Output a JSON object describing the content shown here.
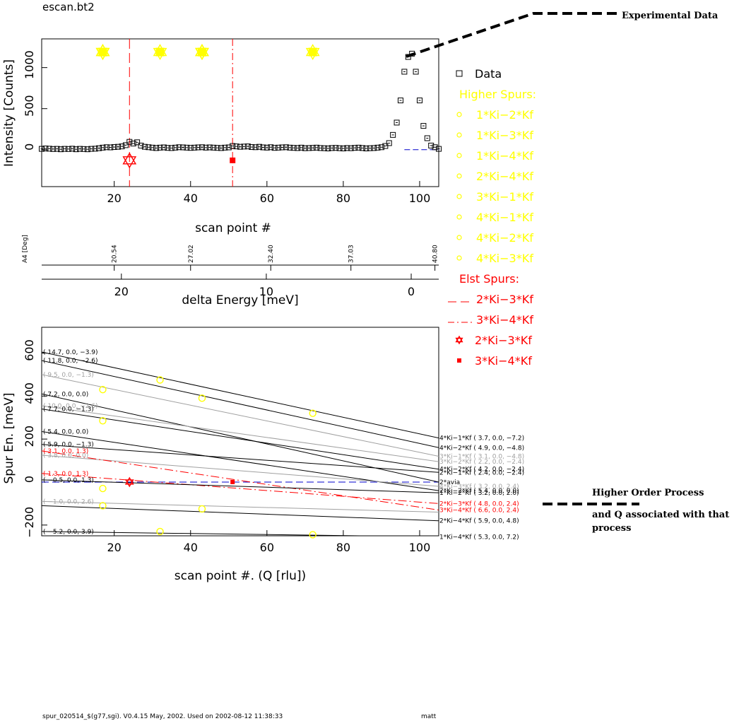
{
  "file_title": "escan.bt2",
  "footer": {
    "version_text": "spur_020514_$(g77,sgi). V0.4.15 May, 2002. Used on 2002-08-12  11:38:33",
    "user": "matt"
  },
  "annotations": {
    "experimental": "Experimental Data",
    "higher_order_line1": "Higher Order Process",
    "higher_order_line2": "and Q associated with that",
    "higher_order_line3": "process"
  },
  "colors": {
    "data": "#000000",
    "higher_spurs": "#ffff00",
    "elst_spurs": "#ff0000",
    "baseline": "#0000cc",
    "grey_line": "#a0a0a0"
  },
  "legend": {
    "data_label": "Data",
    "higher_header": "Higher Spurs:",
    "higher_items": [
      "1*Ki−2*Kf",
      "1*Ki−3*Kf",
      "1*Ki−4*Kf",
      "2*Ki−4*Kf",
      "3*Ki−1*Kf",
      "4*Ki−1*Kf",
      "4*Ki−2*Kf",
      "4*Ki−3*Kf"
    ],
    "elst_header": "Elst Spurs:",
    "elst_line_items": [
      "2*Ki−3*Kf",
      "3*Ki−4*Kf"
    ],
    "elst_point_items": [
      "2*Ki−3*Kf",
      "3*Ki−4*Kf"
    ]
  },
  "chart_data": [
    {
      "type": "scatter",
      "xlabel": "scan point #",
      "ylabel": "Intensity [Counts]",
      "xlim": [
        1,
        105
      ],
      "ylim": [
        -450,
        1350
      ],
      "xticks": [
        20,
        40,
        60,
        80,
        100
      ],
      "yticks": [
        0,
        500,
        1000
      ],
      "grid": false,
      "data": {
        "x": [
          1,
          2,
          3,
          4,
          5,
          6,
          7,
          8,
          9,
          10,
          11,
          12,
          13,
          14,
          15,
          16,
          17,
          18,
          19,
          20,
          21,
          22,
          23,
          24,
          25,
          26,
          27,
          28,
          29,
          30,
          31,
          32,
          33,
          34,
          35,
          36,
          37,
          38,
          39,
          40,
          41,
          42,
          43,
          44,
          45,
          46,
          47,
          48,
          49,
          50,
          51,
          52,
          53,
          54,
          55,
          56,
          57,
          58,
          59,
          60,
          61,
          62,
          63,
          64,
          65,
          66,
          67,
          68,
          69,
          70,
          71,
          72,
          73,
          74,
          75,
          76,
          77,
          78,
          79,
          80,
          81,
          82,
          83,
          84,
          85,
          86,
          87,
          88,
          89,
          90,
          91,
          92,
          93,
          94,
          95,
          96,
          97,
          98,
          99,
          100,
          101,
          102,
          103,
          104,
          105
        ],
        "y": [
          10,
          15,
          12,
          8,
          10,
          5,
          10,
          8,
          12,
          5,
          10,
          8,
          5,
          10,
          12,
          18,
          25,
          30,
          28,
          32,
          35,
          40,
          55,
          95,
          75,
          90,
          50,
          35,
          30,
          25,
          20,
          25,
          28,
          22,
          20,
          25,
          30,
          28,
          25,
          22,
          25,
          28,
          30,
          25,
          28,
          25,
          22,
          20,
          25,
          28,
          45,
          40,
          35,
          38,
          40,
          32,
          30,
          35,
          28,
          25,
          30,
          22,
          25,
          28,
          30,
          25,
          22,
          20,
          25,
          18,
          20,
          22,
          25,
          20,
          18,
          15,
          20,
          22,
          18,
          15,
          20,
          18,
          22,
          25,
          20,
          15,
          18,
          20,
          25,
          30,
          45,
          80,
          180,
          330,
          600,
          950,
          1130,
          1170,
          950,
          600,
          290,
          140,
          50,
          30,
          10
        ]
      },
      "higher_points": [
        {
          "series": "1*Ki−2*Kf",
          "x": 17,
          "y": 1190
        },
        {
          "series": "1*Ki−3*Kf",
          "x": 43,
          "y": 1190
        },
        {
          "series": "1*Ki−4*Kf",
          "x": 32,
          "y": 1190
        },
        {
          "series": "1*Ki−4*Kf",
          "x": 72,
          "y": 1190
        },
        {
          "series": "2*Ki−4*Kf",
          "x": 17,
          "y": 1190
        },
        {
          "series": "3*Ki−1*Kf",
          "x": 17,
          "y": 1190
        },
        {
          "series": "4*Ki−1*Kf",
          "x": 43,
          "y": 1190
        },
        {
          "series": "4*Ki−2*Kf",
          "x": 43,
          "y": 1190
        }
      ],
      "elst_points": [
        {
          "series": "2*Ki−3*Kf",
          "x": 24,
          "y": -130
        },
        {
          "series": "3*Ki−4*Kf",
          "x": 51,
          "y": -130
        }
      ],
      "elst_vlines": [
        {
          "series": "2*Ki−3*Kf",
          "x": 24,
          "style": "dash"
        },
        {
          "series": "3*Ki−4*Kf",
          "x": 51,
          "style": "dashdot"
        }
      ],
      "baseline": {
        "x0": 96,
        "x1": 105,
        "y": 0
      }
    },
    {
      "type": "axis",
      "xlabel": "delta Energy [meV]",
      "xlim": [
        25.5,
        -1.9
      ],
      "xticks": [
        20,
        10,
        0
      ],
      "top_label": "A4 [Deg]",
      "top_ticks": [
        {
          "scan_point": 20,
          "label": "20.54"
        },
        {
          "scan_point": 40,
          "label": "27.02"
        },
        {
          "scan_point": 61,
          "label": "32.40"
        },
        {
          "scan_point": 82,
          "label": "37.03"
        },
        {
          "scan_point": 104,
          "label": "40.80"
        }
      ]
    },
    {
      "type": "line",
      "xlabel": "scan point #. (Q [rlu])",
      "ylabel": "Spur En. [meV]",
      "xlim": [
        1,
        105
      ],
      "ylim": [
        -250,
        720
      ],
      "xticks": [
        20,
        40,
        60,
        80,
        100
      ],
      "yticks": [
        -200,
        0,
        200,
        400,
        600
      ],
      "grid": false,
      "lines": [
        {
          "color": "black",
          "y0": 605,
          "y1": 205,
          "left": "( 14.7,  0.0, −3.9)",
          "right": "4*Ki−1*Kf  (  3.7,  0.0, −7.2)"
        },
        {
          "color": "black",
          "y0": 565,
          "y1": 160,
          "left": "( 11.8,  0.0, −2.6)",
          "right": "4*Ki−2*Kf  (  4.9,  0.0, −4.8)"
        },
        {
          "color": "grey",
          "y0": 500,
          "y1": 120,
          "left": "( 9.5,  0.0, −1.3)",
          "right": "3*Ki−1*Kf  (  3.1,  0.0, −4.8)"
        },
        {
          "color": "black",
          "y0": 410,
          "y1": 0,
          "left": "( 7.2,  0.0,  0.0)",
          "right": "2*avia"
        },
        {
          "color": "grey",
          "y0": 355,
          "y1": 95,
          "left": "( 10.0,  0.0, −2.6)",
          "right": "3*Ki−2*Kf  (  2.2,  0.0, −2.4)"
        },
        {
          "color": "black",
          "y0": 340,
          "y1": 60,
          "left": "( 7.7,  0.0, −1.3)",
          "right": "4*Ki−2*Kf  (  4.2,  0.0, −2.4)"
        },
        {
          "color": "black",
          "y0": 235,
          "y1": -40,
          "left": "( 5.4,  0.0,  0.0)",
          "right": "2*Ki−2*Kf  (  5.4,  0.0,  0.0)"
        },
        {
          "color": "black",
          "y0": 175,
          "y1": 45,
          "left": "( 5.9,  0.0, −1.3)",
          "right": "2*Ki−1*Kf  (  2.4,  0.0, −2.4)"
        },
        {
          "color": "grey",
          "y0": 125,
          "y1": -20,
          "left": "( 3.8,  0.0,  0.0)",
          "right": "4*Ki−3*Kf  (  3.2,  0.0,  2.4)"
        },
        {
          "color": "red",
          "style": "dashdot",
          "y0": 145,
          "y1": -130,
          "left": "( 3.1,  0.0,  1.3)",
          "right": "3*Ki−4*Kf  (  6.6,  0.0,  2.4)"
        },
        {
          "color": "red",
          "style": "dashdot",
          "y0": 40,
          "y1": -100,
          "left": "( 1.3,  0.0,  1.3)",
          "right": "2*Ki−3*Kf  (  4.8,  0.0,  2.4)"
        },
        {
          "color": "black",
          "y0": 10,
          "y1": -50,
          "left": "( −0.5,  0.0,  1.3)",
          "right": "1*Ki−2*Kf  (  3.2,  0.0,  2.0)"
        },
        {
          "color": "grey",
          "y0": -90,
          "y1": -140,
          "left": "( −1.0,  0.0,  2.6)",
          "right": ""
        },
        {
          "color": "black",
          "y0": -110,
          "y1": -180,
          "left": "",
          "right": "2*Ki−4*Kf  (  5.9,  0.0,  4.8)"
        },
        {
          "color": "black",
          "y0": -230,
          "y1": -255,
          "left": "( −5.2,  0.0,  3.9)",
          "right": "1*Ki−4*Kf  (  5.3,  0.0,  7.2)"
        }
      ],
      "baseline": {
        "y": 0
      },
      "higher_points": [
        {
          "series": "1*Ki−3*Kf",
          "x": 32,
          "y": 475
        },
        {
          "series": "1*Ki−3*Kf",
          "x": 72,
          "y": 320
        },
        {
          "series": "4*Ki−2*Kf",
          "x": 43,
          "y": 390
        },
        {
          "series": "4*Ki−3*Kf",
          "x": 17,
          "y": 430
        },
        {
          "series": "3*Ki−1*Kf",
          "x": 17,
          "y": 285
        },
        {
          "series": "1*Ki−2*Kf",
          "x": 17,
          "y": -30
        },
        {
          "series": "4*Ki−3*Kf",
          "x": 17,
          "y": -110
        },
        {
          "series": "1*Ki−3*Kf",
          "x": 43,
          "y": -125
        },
        {
          "series": "1*Ki−4*Kf",
          "x": 32,
          "y": -230
        },
        {
          "series": "1*Ki−4*Kf",
          "x": 72,
          "y": -245
        }
      ],
      "elst_points": [
        {
          "series": "2*Ki−3*Kf",
          "x": 24,
          "y": 0
        },
        {
          "series": "3*Ki−4*Kf",
          "x": 51,
          "y": 0
        }
      ]
    }
  ]
}
